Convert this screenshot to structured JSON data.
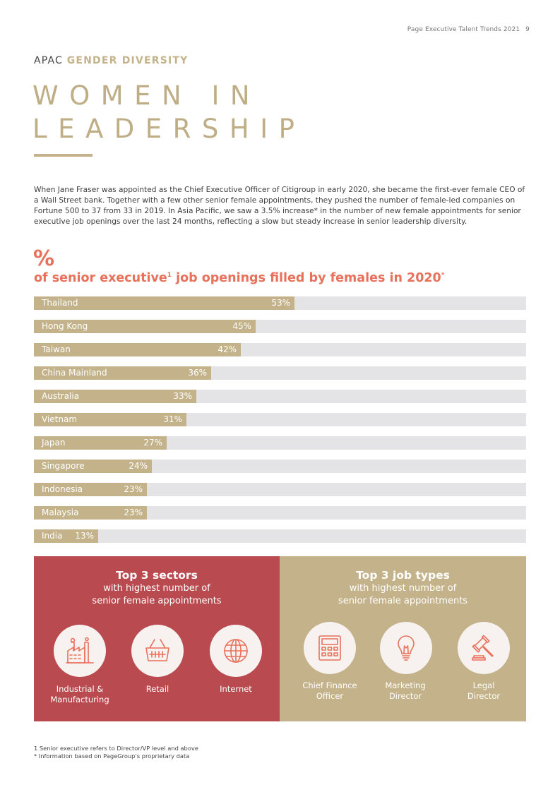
{
  "header": {
    "publication": "Page Executive Talent Trends 2021",
    "page_number": "9"
  },
  "section": {
    "kicker_region": "APAC",
    "kicker_topic": "GENDER DIVERSITY"
  },
  "title": {
    "line1": "WOMEN IN",
    "line2": "LEADERSHIP"
  },
  "intro": "When Jane Fraser was appointed as the Chief Executive Officer of Citigroup in early 2020, she became the first-ever female CEO of a Wall Street bank. Together with a few other senior female appointments, they pushed the number of female-led companies on Fortune 500 to 37 from 33 in 2019. In Asia Pacific, we saw a 3.5% increase* in the number of new female appointments for senior executive job openings over the last 24 months, reflecting a slow but steady increase in senior leadership diversity.",
  "colors": {
    "gold": "#c4b38a",
    "coral": "#e8715b",
    "red_panel": "#b94a4f",
    "track": "#e4e4e6"
  },
  "chart_data": {
    "type": "bar",
    "orientation": "horizontal",
    "title_symbol": "%",
    "title_part1": "of senior executive",
    "title_sup1": "1",
    "title_part2": " job openings filled by females in 2020",
    "title_sup2": "*",
    "unit": "%",
    "xlim": [
      0,
      100
    ],
    "categories": [
      "Thailand",
      "Hong Kong",
      "Taiwan",
      "China Mainland",
      "Australia",
      "Vietnam",
      "Japan",
      "Singapore",
      "Indonesia",
      "Malaysia",
      "India"
    ],
    "values": [
      53,
      45,
      42,
      36,
      33,
      31,
      27,
      24,
      23,
      23,
      13
    ],
    "value_labels": [
      "53%",
      "45%",
      "42%",
      "36%",
      "33%",
      "31%",
      "27%",
      "24%",
      "23%",
      "23%",
      "13%"
    ]
  },
  "sectors_panel": {
    "title": "Top 3 sectors",
    "subtitle_line1": "with highest number of",
    "subtitle_line2": "senior female appointments",
    "items": [
      {
        "icon": "factory-icon",
        "line1": "Industrial &",
        "line2": "Manufacturing"
      },
      {
        "icon": "shopping-basket-icon",
        "line1": "Retail",
        "line2": ""
      },
      {
        "icon": "globe-icon",
        "line1": "Internet",
        "line2": ""
      }
    ]
  },
  "jobs_panel": {
    "title": "Top 3 job types",
    "subtitle_line1": "with highest number of",
    "subtitle_line2": "senior female appointments",
    "items": [
      {
        "icon": "calculator-icon",
        "line1": "Chief Finance",
        "line2": "Officer"
      },
      {
        "icon": "lightbulb-icon",
        "line1": "Marketing",
        "line2": "Director"
      },
      {
        "icon": "gavel-icon",
        "line1": "Legal",
        "line2": "Director"
      }
    ]
  },
  "footnotes": {
    "note1": "1 Senior executive refers to Director/VP level and above",
    "note2": "* Information based on PageGroup's proprietary data"
  }
}
